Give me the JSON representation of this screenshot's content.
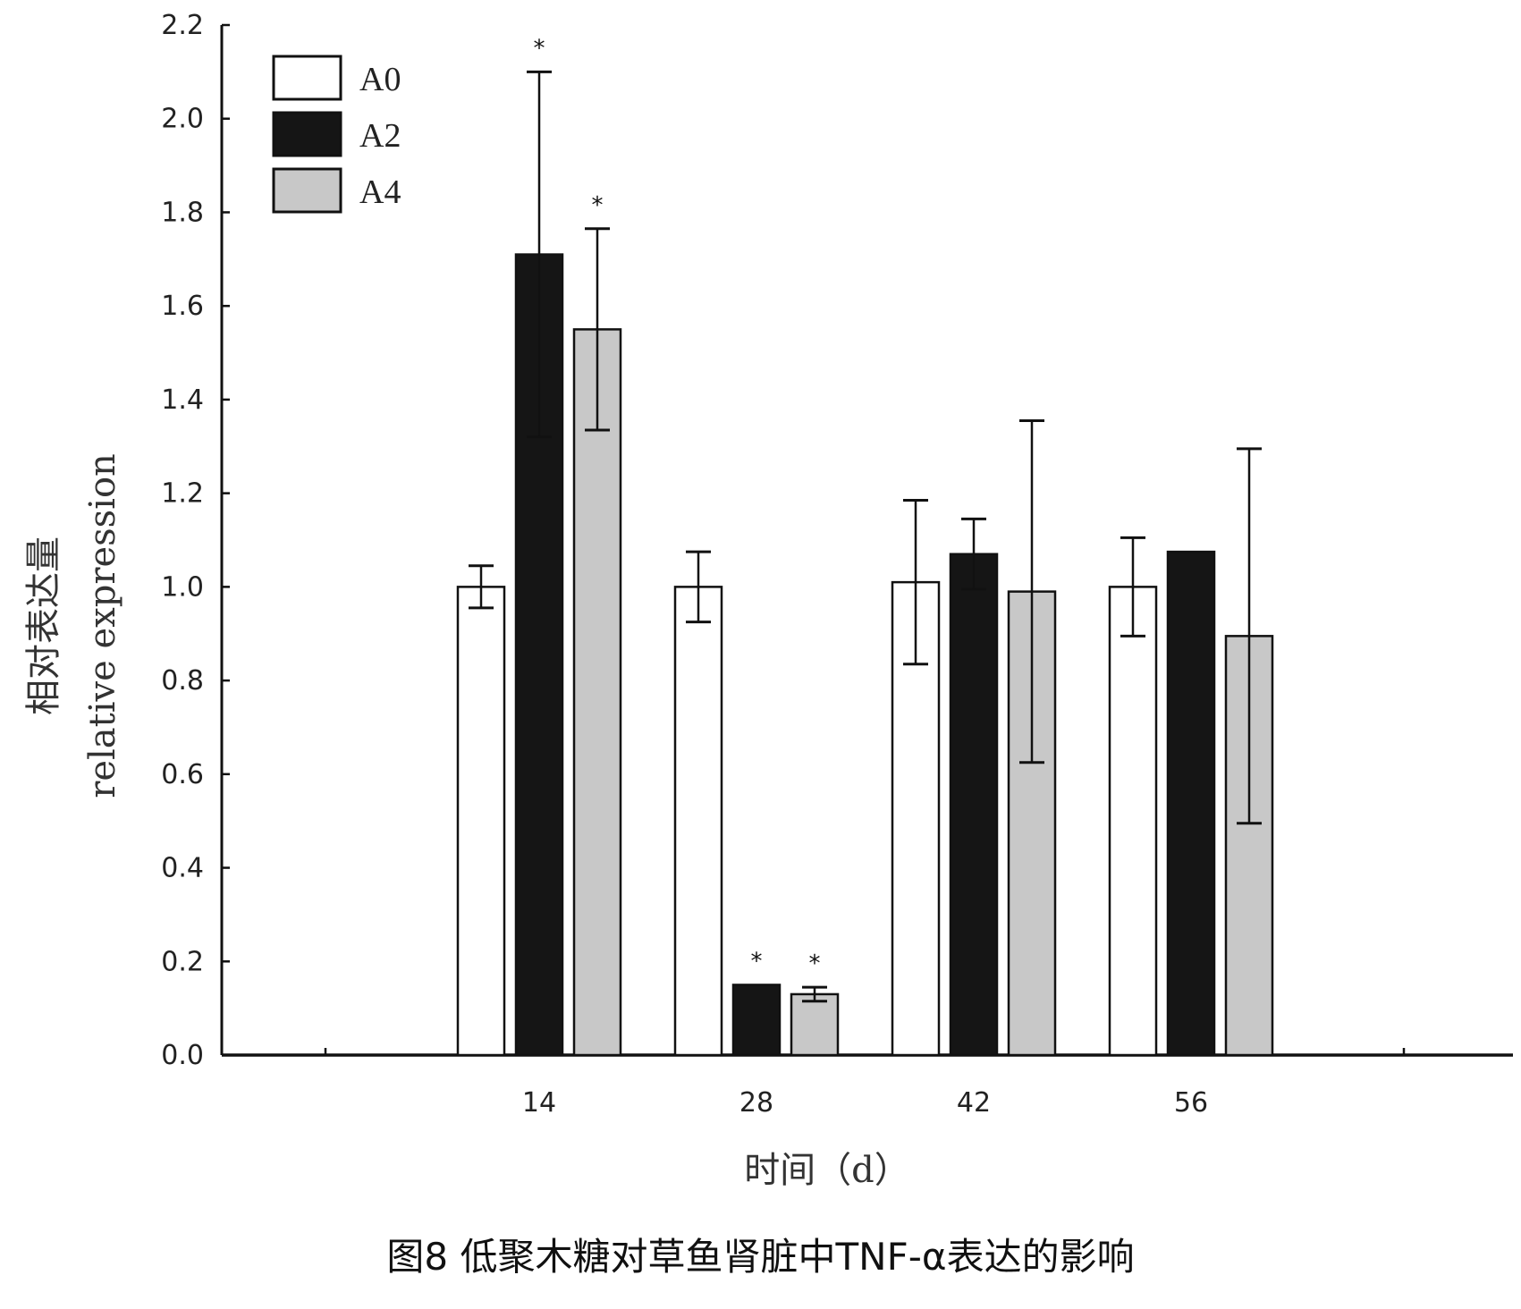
{
  "chart_data": {
    "type": "bar",
    "categories": [
      "14",
      "28",
      "42",
      "56"
    ],
    "series": [
      {
        "name": "A0",
        "values": [
          1.0,
          1.0,
          1.01,
          1.0
        ],
        "errors": [
          0.045,
          0.075,
          0.175,
          0.105
        ],
        "significant": [
          false,
          false,
          false,
          false
        ],
        "color": "#ffffff"
      },
      {
        "name": "A2",
        "values": [
          1.71,
          0.15,
          1.07,
          1.075
        ],
        "errors": [
          0.39,
          0.0,
          0.075,
          0.0
        ],
        "significant": [
          true,
          true,
          false,
          false
        ],
        "color": "#151515"
      },
      {
        "name": "A4",
        "values": [
          1.55,
          0.13,
          0.99,
          0.895
        ],
        "errors": [
          0.215,
          0.015,
          0.365,
          0.4
        ],
        "significant": [
          true,
          true,
          false,
          false
        ],
        "color": "#c8c8c8"
      }
    ],
    "xlabel": "时间（d）",
    "ylabel": [
      "相对表达量",
      "relative expression"
    ],
    "ylim": [
      0,
      2.2
    ],
    "yticks": [
      "0.0",
      "0.2",
      "0.4",
      "0.6",
      "0.8",
      "1.0",
      "1.2",
      "1.4",
      "1.6",
      "1.8",
      "2.0",
      "2.2"
    ],
    "significance_marker": "*",
    "legend_position": "top-left",
    "grid": false
  },
  "caption": "图8 低聚木糖对草鱼肾脏中TNF-α表达的影响"
}
